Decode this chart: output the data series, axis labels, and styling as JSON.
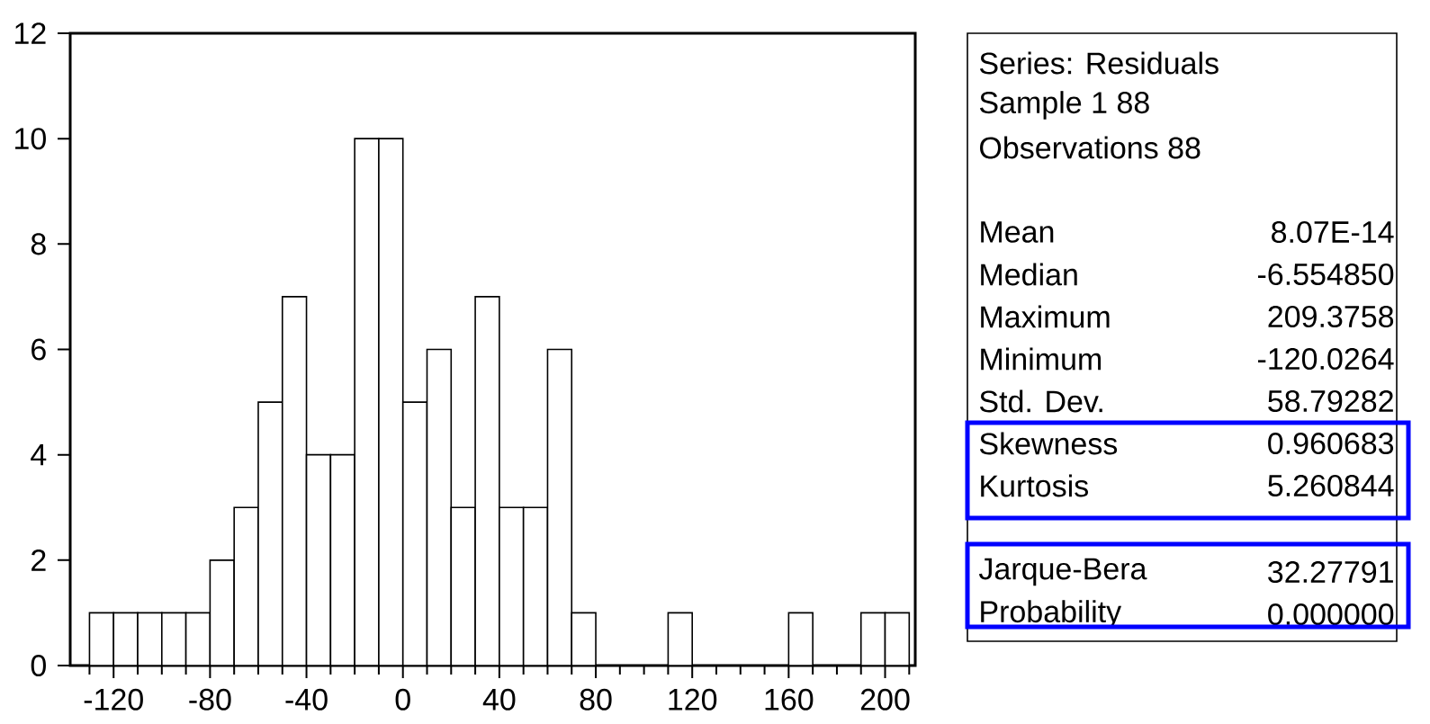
{
  "chart_data": [
    {
      "type": "histogram",
      "bins": [
        -130,
        -120,
        -110,
        -100,
        -90,
        -80,
        -70,
        -60,
        -50,
        -40,
        -30,
        -20,
        -10,
        0,
        10,
        20,
        30,
        40,
        50,
        60,
        70,
        80,
        90,
        100,
        110,
        120,
        130,
        140,
        150,
        160,
        170,
        180,
        190,
        200,
        210
      ],
      "values": [
        1,
        1,
        1,
        1,
        1,
        2,
        3,
        5,
        7,
        4,
        4,
        10,
        10,
        5,
        6,
        3,
        7,
        3,
        3,
        6,
        1,
        0,
        0,
        0,
        1,
        0,
        0,
        0,
        0,
        1,
        0,
        0,
        1,
        1
      ],
      "color": "#ffffff",
      "xlim": [
        -138,
        212.5
      ],
      "xticks": [
        {
          "value": -130,
          "label": null
        },
        -120,
        {
          "value": -110,
          "label": null
        },
        {
          "value": -100,
          "label": null
        },
        {
          "value": -90,
          "label": null
        },
        -80,
        {
          "value": -70,
          "label": null
        },
        {
          "value": -60,
          "label": null
        },
        {
          "value": -50,
          "label": null
        },
        -40,
        {
          "value": -30,
          "label": null
        },
        {
          "value": -20,
          "label": null
        },
        {
          "value": -10,
          "label": null
        },
        0,
        {
          "value": 10,
          "label": null
        },
        {
          "value": 20,
          "label": null
        },
        {
          "value": 30,
          "label": null
        },
        40,
        {
          "value": 50,
          "label": null
        },
        {
          "value": 60,
          "label": null
        },
        {
          "value": 70,
          "label": null
        },
        80,
        {
          "value": 90,
          "label": null
        },
        {
          "value": 100,
          "label": null
        },
        {
          "value": 110,
          "label": null
        },
        120,
        {
          "value": 130,
          "label": null
        },
        {
          "value": 140,
          "label": null
        },
        {
          "value": 150,
          "label": null
        },
        160,
        {
          "value": 170,
          "label": null
        },
        {
          "value": 180,
          "label": null
        },
        {
          "value": 190,
          "label": null
        },
        200,
        {
          "value": 210,
          "label": null
        }
      ],
      "ylim": [
        0,
        12
      ],
      "yticks": [
        0,
        2,
        4,
        6,
        8,
        10,
        12
      ],
      "grid": false
    },
    {
      "type": "other",
      "annotations": [
        "Series: Residuals",
        "Sample 1 88",
        "Observations 88",
        "Mean",
        "8.07E-14",
        "Median",
        "-6.554850",
        "Maximum",
        "209.3758",
        "Minimum",
        "-120.0264",
        "Std. Dev.",
        "58.79282",
        "Skewness",
        "0.960683",
        "Kurtosis",
        "5.260844",
        "Jarque-Bera",
        "32.27791",
        "Probability",
        "0.000000"
      ]
    }
  ]
}
